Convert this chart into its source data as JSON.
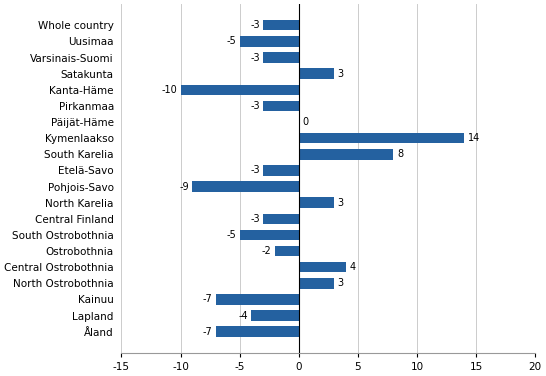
{
  "categories": [
    "Whole country",
    "Uusimaa",
    "Varsinais-Suomi",
    "Satakunta",
    "Kanta-Häme",
    "Pirkanmaa",
    "Päijät-Häme",
    "Kymenlaakso",
    "South Karelia",
    "Etelä-Savo",
    "Pohjois-Savo",
    "North Karelia",
    "Central Finland",
    "South Ostrobothnia",
    "Ostrobothnia",
    "Central Ostrobothnia",
    "North Ostrobothnia",
    "Kainuu",
    "Lapland",
    "Åland"
  ],
  "values": [
    -3,
    -5,
    -3,
    3,
    -10,
    -3,
    0,
    14,
    8,
    -3,
    -9,
    3,
    -3,
    -5,
    -2,
    4,
    3,
    -7,
    -4,
    -7
  ],
  "bar_color": "#2461a0",
  "xlim": [
    -15,
    20
  ],
  "xticks": [
    -15,
    -10,
    -5,
    0,
    5,
    10,
    15,
    20
  ],
  "label_fontsize": 7.5,
  "value_fontsize": 7,
  "bar_height": 0.65,
  "grid_color": "#cccccc",
  "spine_color": "#999999"
}
